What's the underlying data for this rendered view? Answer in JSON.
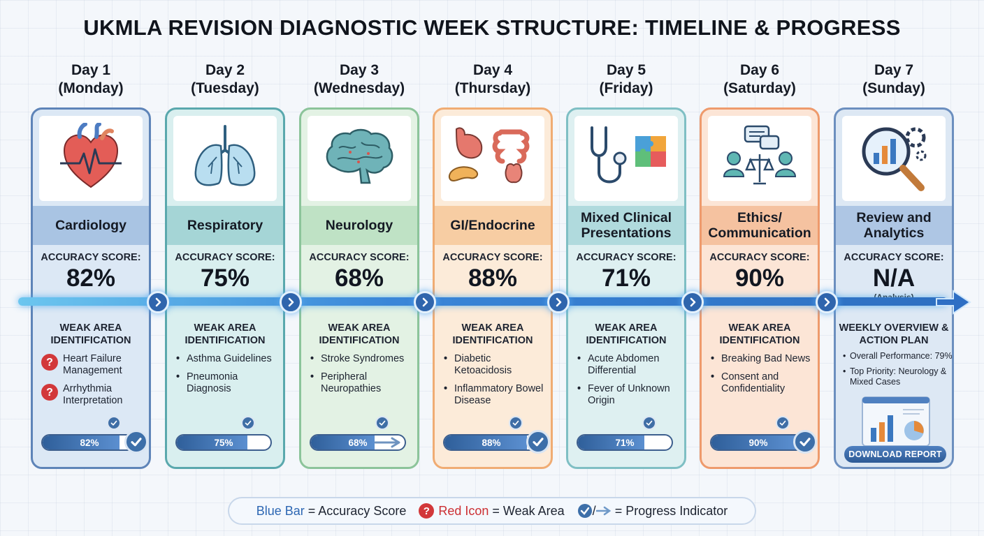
{
  "title": "UKMLA REVISION DIAGNOSTIC WEEK STRUCTURE: TIMELINE & PROGRESS",
  "days": [
    {
      "day": "Day 1",
      "weekday": "(Monday)",
      "subject": "Cardiology",
      "icon": "heart-icon",
      "accuracy_label": "ACCURACY SCORE:",
      "accuracy": "82%",
      "progress": 0.82,
      "weak_title": "WEAK AREA IDENTIFICATION",
      "weak": [
        "Heart Failure Management",
        "Arrhythmia Interpretation"
      ],
      "weak_marker": "red-icon",
      "bar_label": "82%",
      "indicator": "check-icon",
      "border": "#5e84b8",
      "bg": "#dce8f5",
      "band": "#a9c4e3"
    },
    {
      "day": "Day 2",
      "weekday": "(Tuesday)",
      "subject": "Respiratory",
      "icon": "lungs-icon",
      "accuracy_label": "ACCURACY SCORE:",
      "accuracy": "75%",
      "progress": 0.75,
      "weak_title": "WEAK AREA IDENTIFICATION",
      "weak": [
        "Asthma Guidelines",
        "Pneumonia Diagnosis"
      ],
      "weak_marker": "bullet",
      "bar_label": "75%",
      "indicator": "none",
      "border": "#5aa8ad",
      "bg": "#d9efef",
      "band": "#a5d5d6"
    },
    {
      "day": "Day 3",
      "weekday": "(Wednesday)",
      "subject": "Neurology",
      "icon": "brain-icon",
      "accuracy_label": "ACCURACY SCORE:",
      "accuracy": "68%",
      "progress": 0.68,
      "weak_title": "WEAK AREA IDENTIFICATION",
      "weak": [
        "Stroke Syndromes",
        "Peripheral Neuropathies"
      ],
      "weak_marker": "bullet",
      "bar_label": "68%",
      "indicator": "arrow-icon",
      "border": "#8cc49a",
      "bg": "#e3f2e4",
      "band": "#bfe2c5"
    },
    {
      "day": "Day 4",
      "weekday": "(Thursday)",
      "subject": "GI/Endocrine",
      "icon": "digestive-organs-icon",
      "accuracy_label": "ACCURACY SCORE:",
      "accuracy": "88%",
      "progress": 0.88,
      "weak_title": "WEAK AREA IDENTIFICATION",
      "weak": [
        "Diabetic Ketoacidosis",
        "Inflammatory Bowel Disease"
      ],
      "weak_marker": "bullet",
      "bar_label": "88%",
      "indicator": "check-icon",
      "border": "#f0ac73",
      "bg": "#fcebd9",
      "band": "#f7cda3"
    },
    {
      "day": "Day 5",
      "weekday": "(Friday)",
      "subject": "Mixed Clinical Presentations",
      "icon": "stethoscope-puzzle-icon",
      "accuracy_label": "ACCURACY SCORE:",
      "accuracy": "71%",
      "progress": 0.71,
      "weak_title": "WEAK AREA IDENTIFICATION",
      "weak": [
        "Acute Abdomen Differential",
        "Fever of Unknown Origin"
      ],
      "weak_marker": "bullet",
      "bar_label": "71%",
      "indicator": "none",
      "border": "#7fbfc4",
      "bg": "#def0f1",
      "band": "#b0dadd"
    },
    {
      "day": "Day 6",
      "weekday": "(Saturday)",
      "subject": "Ethics/ Communication",
      "icon": "ethics-icon",
      "accuracy_label": "ACCURACY SCORE:",
      "accuracy": "90%",
      "progress": 0.9,
      "weak_title": "WEAK AREA IDENTIFICATION",
      "weak": [
        "Breaking Bad News",
        "Consent and Confidentiality"
      ],
      "weak_marker": "bullet",
      "bar_label": "90%",
      "indicator": "check-icon",
      "border": "#ee9a6c",
      "bg": "#fce5d6",
      "band": "#f5c2a0"
    }
  ],
  "review": {
    "day": "Day 7",
    "weekday": "(Sunday)",
    "subject": "Review and Analytics",
    "icon": "analytics-magnifier-icon",
    "accuracy_label": "ACCURACY SCORE:",
    "accuracy": "N/A",
    "note": "(Analysis)",
    "overview_title": "WEEKLY OVERVIEW & ACTION PLAN",
    "overview": [
      "Overall Performance: 79%",
      "Top Priority: Neurology & Mixed Cases"
    ],
    "button": "DOWNLOAD REPORT",
    "border": "#6c8fbf",
    "bg": "#dde8f4",
    "band": "#aec6e4"
  },
  "legend": {
    "blue_term": "Blue Bar",
    "blue_desc": "= Accuracy Score",
    "red_term": "Red Icon",
    "red_desc": "= Weak Area",
    "progress_sep": "/",
    "progress_desc": "= Progress Indicator",
    "question_mark": "?"
  }
}
